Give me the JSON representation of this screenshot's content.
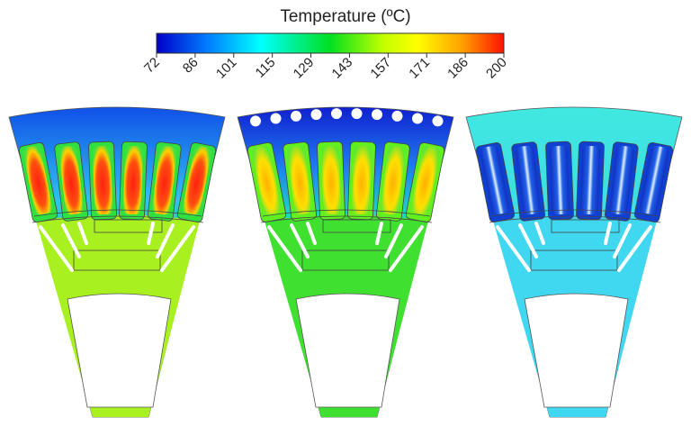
{
  "colorbar": {
    "title": "Temperature (ºC)",
    "ticks": [
      "72",
      "86",
      "101",
      "115",
      "129",
      "143",
      "157",
      "171",
      "186",
      "200"
    ],
    "min": 72,
    "max": 200,
    "colors": [
      "#0000c8",
      "#0080ff",
      "#00ffff",
      "#00ff40",
      "#c0ff00",
      "#ffff00",
      "#ffa000",
      "#ff2000"
    ]
  },
  "panels": [
    {
      "yoke_color": "#1f70f0",
      "body_color": "#a8f020",
      "slot_color": "#ff3010",
      "slot_edge": "#30e040",
      "cooling_holes": false
    },
    {
      "yoke_color": "#1028d8",
      "body_color": "#40e030",
      "slot_color": "#ffc010",
      "slot_edge": "#60f020",
      "cooling_holes": true
    },
    {
      "yoke_color": "#40d8f0",
      "body_color": "#40d8f0",
      "slot_color": "#ffffff",
      "slot_edge": "#1040d0",
      "cooling_holes": false
    }
  ]
}
